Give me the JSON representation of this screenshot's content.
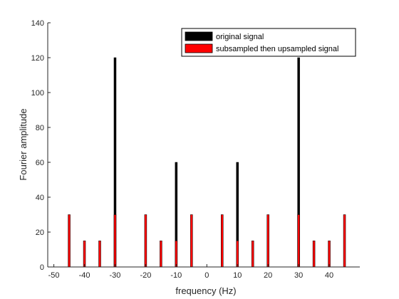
{
  "chart_data": {
    "type": "bar",
    "xlabel": "frequency (Hz)",
    "ylabel": "Fourier amplitude",
    "xlim": [
      -52,
      50
    ],
    "ylim": [
      0,
      140
    ],
    "xticks": [
      -50,
      -40,
      -30,
      -20,
      -10,
      0,
      10,
      20,
      30,
      40
    ],
    "yticks": [
      0,
      20,
      40,
      60,
      80,
      100,
      120,
      140
    ],
    "grid": false,
    "legend_position": "top-right",
    "series": [
      {
        "name": "original signal",
        "color": "#000000",
        "points": [
          {
            "x": -30,
            "y": 120
          },
          {
            "x": -10,
            "y": 60
          },
          {
            "x": 10,
            "y": 60
          },
          {
            "x": 30,
            "y": 120
          }
        ]
      },
      {
        "name": "subsampled then upsampled signal",
        "color": "#ff0000",
        "points": [
          {
            "x": -45,
            "y": 30
          },
          {
            "x": -40,
            "y": 15
          },
          {
            "x": -35,
            "y": 15
          },
          {
            "x": -30,
            "y": 30
          },
          {
            "x": -20,
            "y": 30
          },
          {
            "x": -15,
            "y": 15
          },
          {
            "x": -10,
            "y": 15
          },
          {
            "x": -5,
            "y": 30
          },
          {
            "x": 5,
            "y": 30
          },
          {
            "x": 10,
            "y": 15
          },
          {
            "x": 15,
            "y": 15
          },
          {
            "x": 20,
            "y": 30
          },
          {
            "x": 30,
            "y": 30
          },
          {
            "x": 35,
            "y": 15
          },
          {
            "x": 40,
            "y": 15
          },
          {
            "x": 45,
            "y": 30
          }
        ]
      }
    ]
  }
}
